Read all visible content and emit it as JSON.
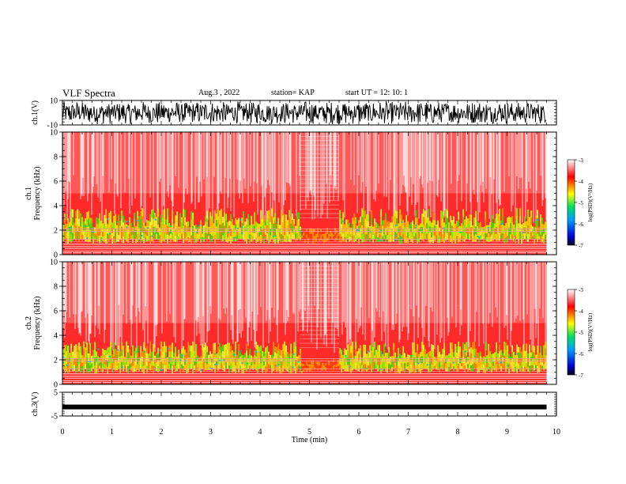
{
  "header": {
    "title": "VLF Spectra",
    "date": "Aug.3  , 2022",
    "station": "station= KAP",
    "start_ut": "start  UT  =   12: 10: 1"
  },
  "chart_data": [
    {
      "type": "line",
      "panel": "ch1-waveform",
      "ylabel": "ch.1(V)",
      "ylim": [
        -10,
        10
      ],
      "yticks": [
        "10",
        "-10"
      ],
      "xlim": [
        0,
        10
      ],
      "end_time_min": 9.8,
      "note": "dense oscillating waveform saturating near the limits"
    },
    {
      "type": "heatmap",
      "panel": "ch1-spectrogram",
      "ylabel": "ch.1\nFrequency  (kHz)",
      "ylim": [
        0,
        10
      ],
      "yticks": [
        "0",
        "2",
        "4",
        "6",
        "8",
        "10"
      ],
      "xlim": [
        0,
        10
      ],
      "end_time_min": 9.8,
      "colorbar": {
        "label": "log(PSD)(V²/Hz)",
        "range": [
          -7,
          -3
        ],
        "ticks": [
          "-3",
          "-4",
          "-5",
          "-6",
          "-7"
        ]
      },
      "quiet_interval_min": [
        4.8,
        5.6
      ]
    },
    {
      "type": "heatmap",
      "panel": "ch2-spectrogram",
      "ylabel": "ch.2\nFrequency  (kHz)",
      "ylim": [
        0,
        10
      ],
      "yticks": [
        "0",
        "2",
        "4",
        "6",
        "8",
        "10"
      ],
      "xlim": [
        0,
        10
      ],
      "end_time_min": 9.8,
      "colorbar": {
        "label": "log(PSD)(V²/Hz)",
        "range": [
          -7,
          -3
        ],
        "ticks": [
          "-3",
          "-4",
          "-5",
          "-6",
          "-7"
        ]
      },
      "quiet_interval_min": [
        4.8,
        5.6
      ]
    },
    {
      "type": "line",
      "panel": "ch3-waveform",
      "ylabel": "ch.3(V)",
      "ylim": [
        -5,
        5
      ],
      "yticks": [
        "5",
        "-5"
      ],
      "xlim": [
        0,
        10
      ],
      "end_time_min": 9.8,
      "level_v": -1.2,
      "xlabel": "Time  (min)",
      "xticks": [
        "0",
        "1",
        "2",
        "3",
        "4",
        "5",
        "6",
        "7",
        "8",
        "9",
        "10"
      ]
    }
  ]
}
